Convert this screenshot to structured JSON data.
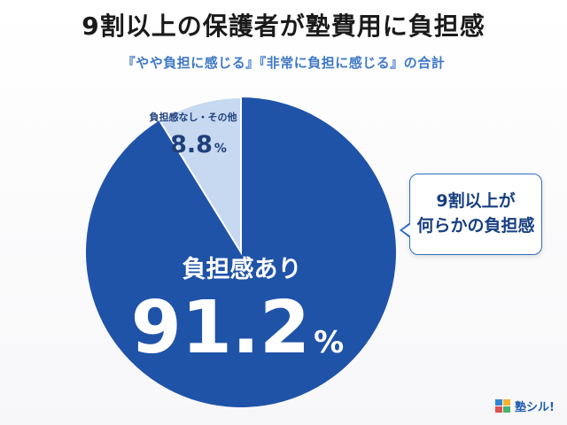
{
  "title": "9割以上の保護者が塾費用に負担感",
  "subtitle": "『やや負担に感じる』『非常に負担に感じる』の合計",
  "callout": {
    "line1": "9割以上が",
    "line2": "何らかの負担感"
  },
  "logo": {
    "text": "塾シル!"
  },
  "colors": {
    "major": "#1f53a8",
    "minor": "#c6d9f1",
    "title": "#1a1a1a",
    "subtitle": "#3f79c6",
    "accent": "#2f6fc0"
  },
  "chart_data": {
    "type": "pie",
    "title": "9割以上の保護者が塾費用に負担感",
    "subtitle": "『やや負担に感じる』『非常に負担に感じる』の合計",
    "slices": [
      {
        "label": "負担感あり",
        "value": 91.2,
        "unit": "%"
      },
      {
        "label": "負担感なし・その他",
        "value": 8.8,
        "unit": "%"
      }
    ]
  }
}
